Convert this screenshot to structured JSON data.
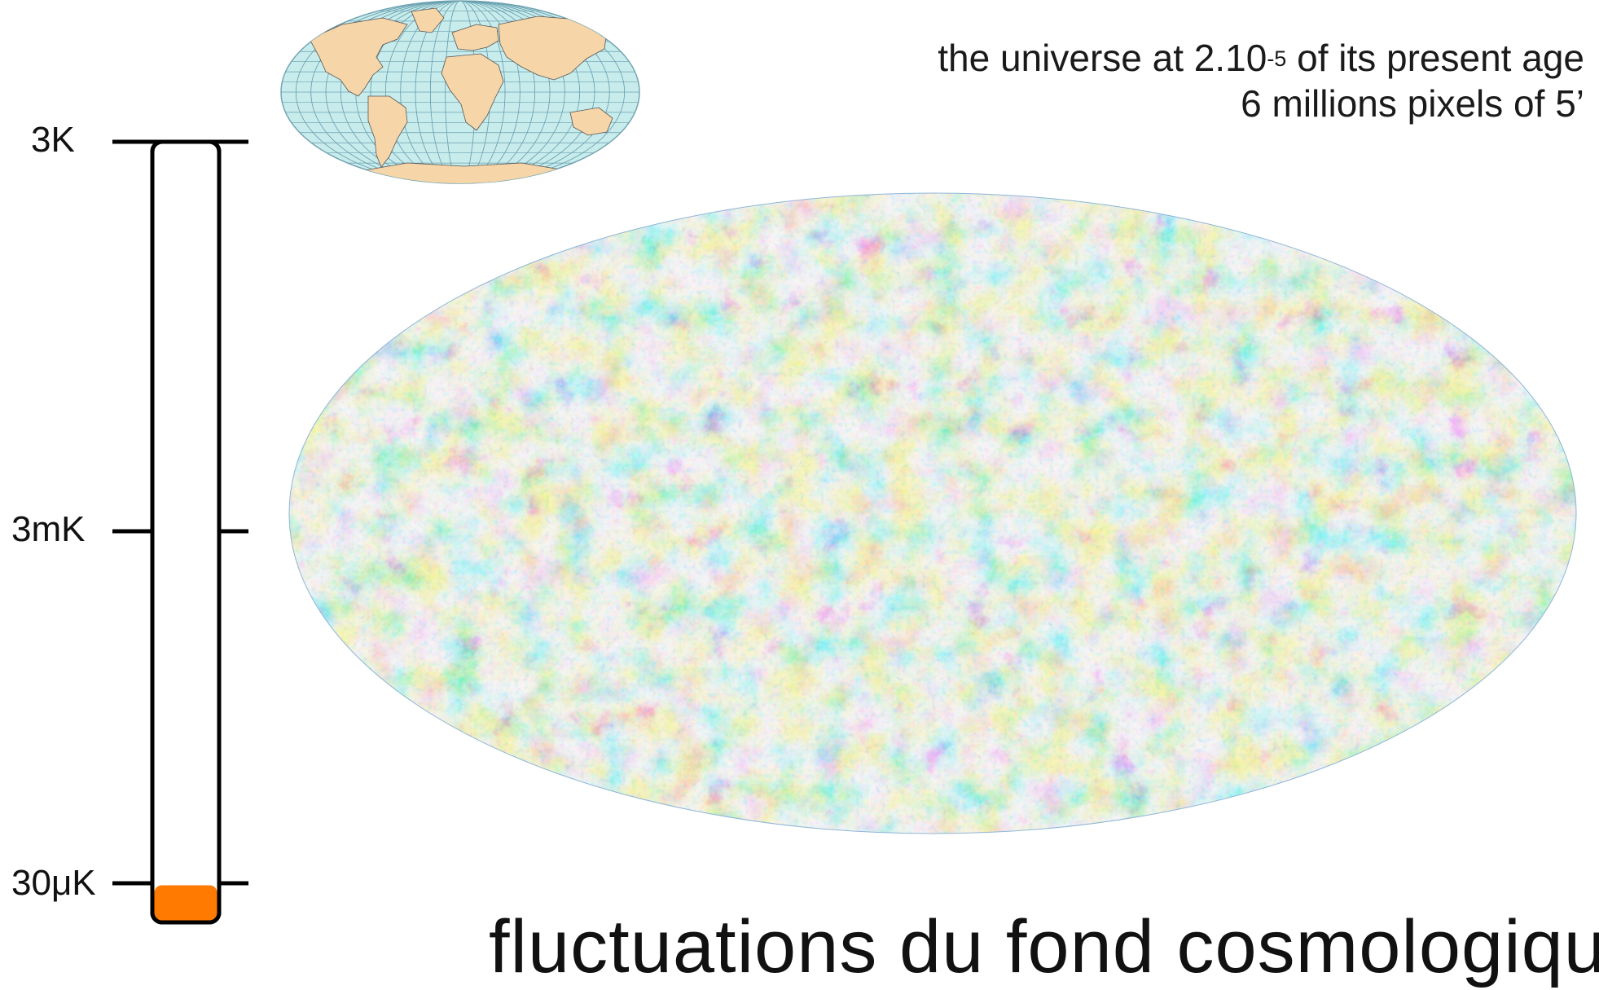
{
  "caption": {
    "line1_prefix": "the universe at 2.10",
    "line1_exponent": "-5",
    "line1_suffix": " of its present age",
    "line2": "6 millions pixels of 5’"
  },
  "temperature_scale": {
    "labels": [
      "3K",
      "3mK",
      "30μK"
    ],
    "fill_color": "#ff7a00",
    "bar_border_color": "#000000"
  },
  "cmb_map": {
    "projection": "mollweide",
    "colors": {
      "deep_blue": "#1a3fd9",
      "blue": "#3c7be0",
      "light_cyan": "#bfe8f0",
      "cream": "#f2e4b3",
      "orange": "#e3a04c",
      "dark_orange": "#c2651d"
    }
  },
  "earth_map": {
    "ocean_color": "#c8ecec",
    "land_color": "#f6d5a8",
    "grid_color": "#6aa0b0"
  },
  "title": "fluctuations du fond cosmologique"
}
